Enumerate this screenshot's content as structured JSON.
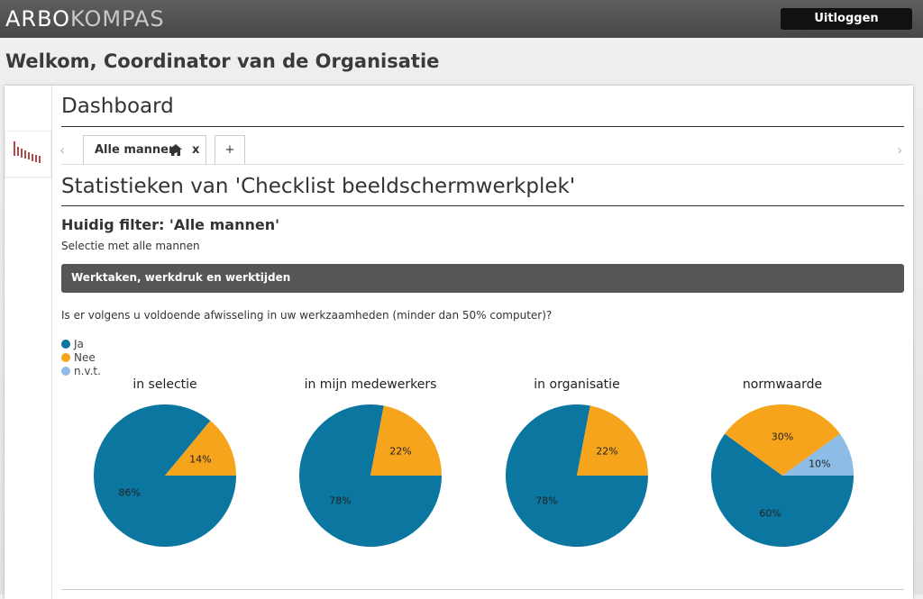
{
  "header": {
    "logo_part1": "ARBO",
    "logo_part2": "KOMPAS",
    "logout": "Uitloggen"
  },
  "welcome": "Welkom, Coordinator van de Organisatie",
  "dashboard": {
    "title": "Dashboard",
    "tabs": {
      "active": "Alle mannen",
      "close": "x",
      "add": "+"
    }
  },
  "statistics": {
    "title": "Statistieken van 'Checklist beeldschermwerkplek'",
    "filter": "Huidig filter: 'Alle mannen'",
    "filter_description": "Selectie met alle mannen",
    "section": "Werktaken, werkdruk en werktijden",
    "question": "Is er volgens u voldoende afwisseling in uw werkzaamheden (minder dan 50% computer)?"
  },
  "chart_data": [
    {
      "type": "pie",
      "title": "in selectie",
      "categories": [
        "Ja",
        "Nee",
        "n.v.t."
      ],
      "values": [
        86,
        14,
        0
      ],
      "value_labels": [
        "86%",
        "14%",
        null
      ],
      "colors": [
        "#0b76a0",
        "#f7a41d",
        "#8dbce6"
      ]
    },
    {
      "type": "pie",
      "title": "in mijn medewerkers",
      "categories": [
        "Ja",
        "Nee",
        "n.v.t."
      ],
      "values": [
        78,
        22,
        0
      ],
      "value_labels": [
        "78%",
        "22%",
        null
      ],
      "colors": [
        "#0b76a0",
        "#f7a41d",
        "#8dbce6"
      ]
    },
    {
      "type": "pie",
      "title": "in organisatie",
      "categories": [
        "Ja",
        "Nee",
        "n.v.t."
      ],
      "values": [
        78,
        22,
        0
      ],
      "value_labels": [
        "78%",
        "22%",
        null
      ],
      "colors": [
        "#0b76a0",
        "#f7a41d",
        "#8dbce6"
      ]
    },
    {
      "type": "pie",
      "title": "normwaarde",
      "categories": [
        "Ja",
        "Nee",
        "n.v.t."
      ],
      "values": [
        60,
        30,
        10
      ],
      "value_labels": [
        "60%",
        "30%",
        "10%"
      ],
      "colors": [
        "#0b76a0",
        "#f7a41d",
        "#8dbce6"
      ]
    }
  ]
}
